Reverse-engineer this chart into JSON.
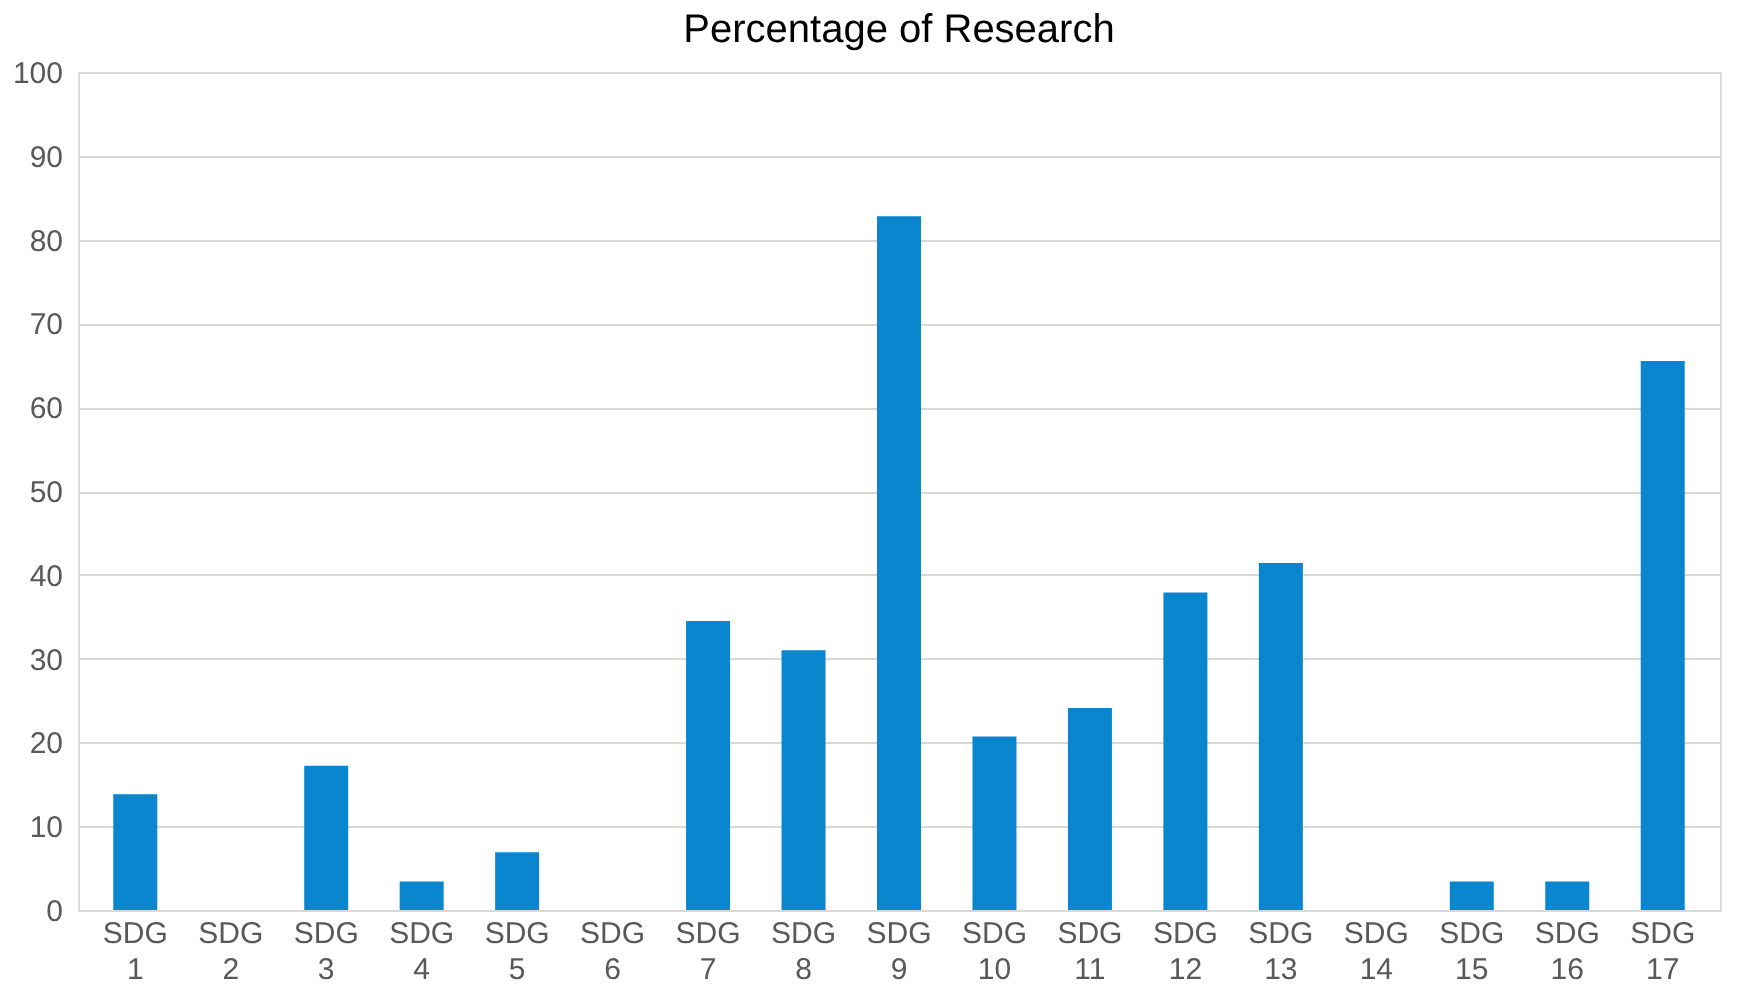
{
  "chart_data": {
    "type": "bar",
    "title": "Percentage of Research",
    "categories": [
      "SDG 1",
      "SDG 2",
      "SDG 3",
      "SDG 4",
      "SDG 5",
      "SDG 6",
      "SDG 7",
      "SDG 8",
      "SDG 9",
      "SDG 10",
      "SDG 11",
      "SDG 12",
      "SDG 13",
      "SDG 14",
      "SDG 15",
      "SDG 16",
      "SDG 17"
    ],
    "values": [
      13.8,
      0,
      17.2,
      3.4,
      6.9,
      0,
      34.5,
      31.0,
      82.8,
      20.7,
      24.1,
      37.9,
      41.4,
      0,
      3.4,
      3.4,
      65.5
    ],
    "color": "#0a86cf",
    "ylim": [
      0,
      100
    ],
    "yticks": [
      0,
      10,
      20,
      30,
      40,
      50,
      60,
      70,
      80,
      90,
      100
    ],
    "grid": "y"
  }
}
